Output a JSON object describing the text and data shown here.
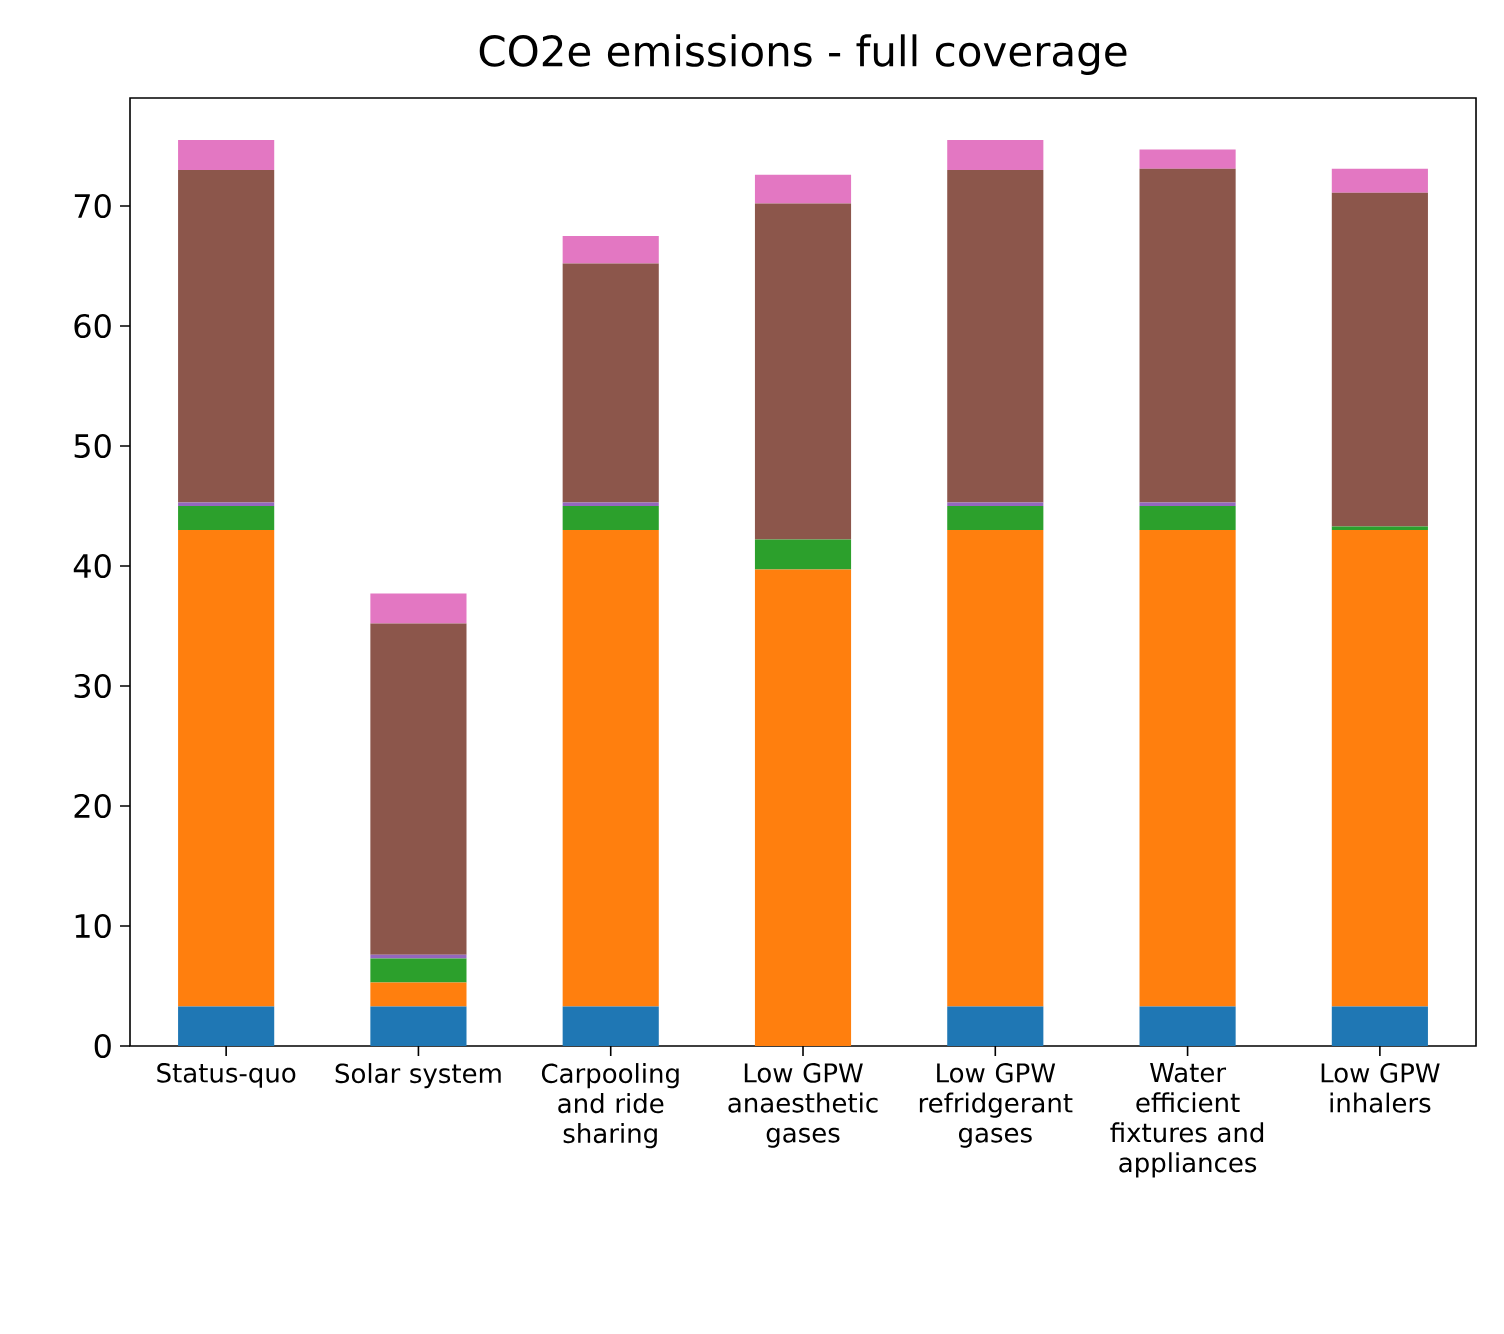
{
  "chart_data": {
    "type": "bar",
    "stacked": true,
    "title": "CO2e emissions - full coverage",
    "categories": [
      "Status-quo",
      "Solar system",
      "Carpooling and ride sharing",
      "Low GPW anaesthetic gases",
      "Low GPW refridgerant gases",
      "Water efficient fixtures and appliances",
      "Low GPW inhalers"
    ],
    "series": [
      {
        "color": "#1f77b4",
        "values": [
          3.3,
          3.3,
          3.3,
          0,
          3.3,
          3.3,
          3.3
        ]
      },
      {
        "color": "#ff7f0e",
        "values": [
          39.7,
          2.0,
          39.7,
          39.7,
          39.7,
          39.7,
          39.7
        ]
      },
      {
        "color": "#2ca02c",
        "values": [
          2.0,
          2.0,
          2.0,
          2.5,
          2.0,
          2.0,
          0.3
        ]
      },
      {
        "color": "#9467bd",
        "values": [
          0.3,
          0.3,
          0.3,
          0,
          0.3,
          0.3,
          0
        ]
      },
      {
        "color": "#8c564b",
        "values": [
          27.7,
          27.6,
          19.9,
          28.0,
          27.7,
          27.8,
          27.8
        ]
      },
      {
        "color": "#e377c2",
        "values": [
          2.5,
          2.5,
          2.3,
          2.4,
          2.5,
          1.6,
          2.0
        ]
      }
    ],
    "ylim": [
      0,
      79
    ],
    "yticks": [
      0,
      10,
      20,
      30,
      40,
      50,
      60,
      70
    ],
    "grid": false
  }
}
